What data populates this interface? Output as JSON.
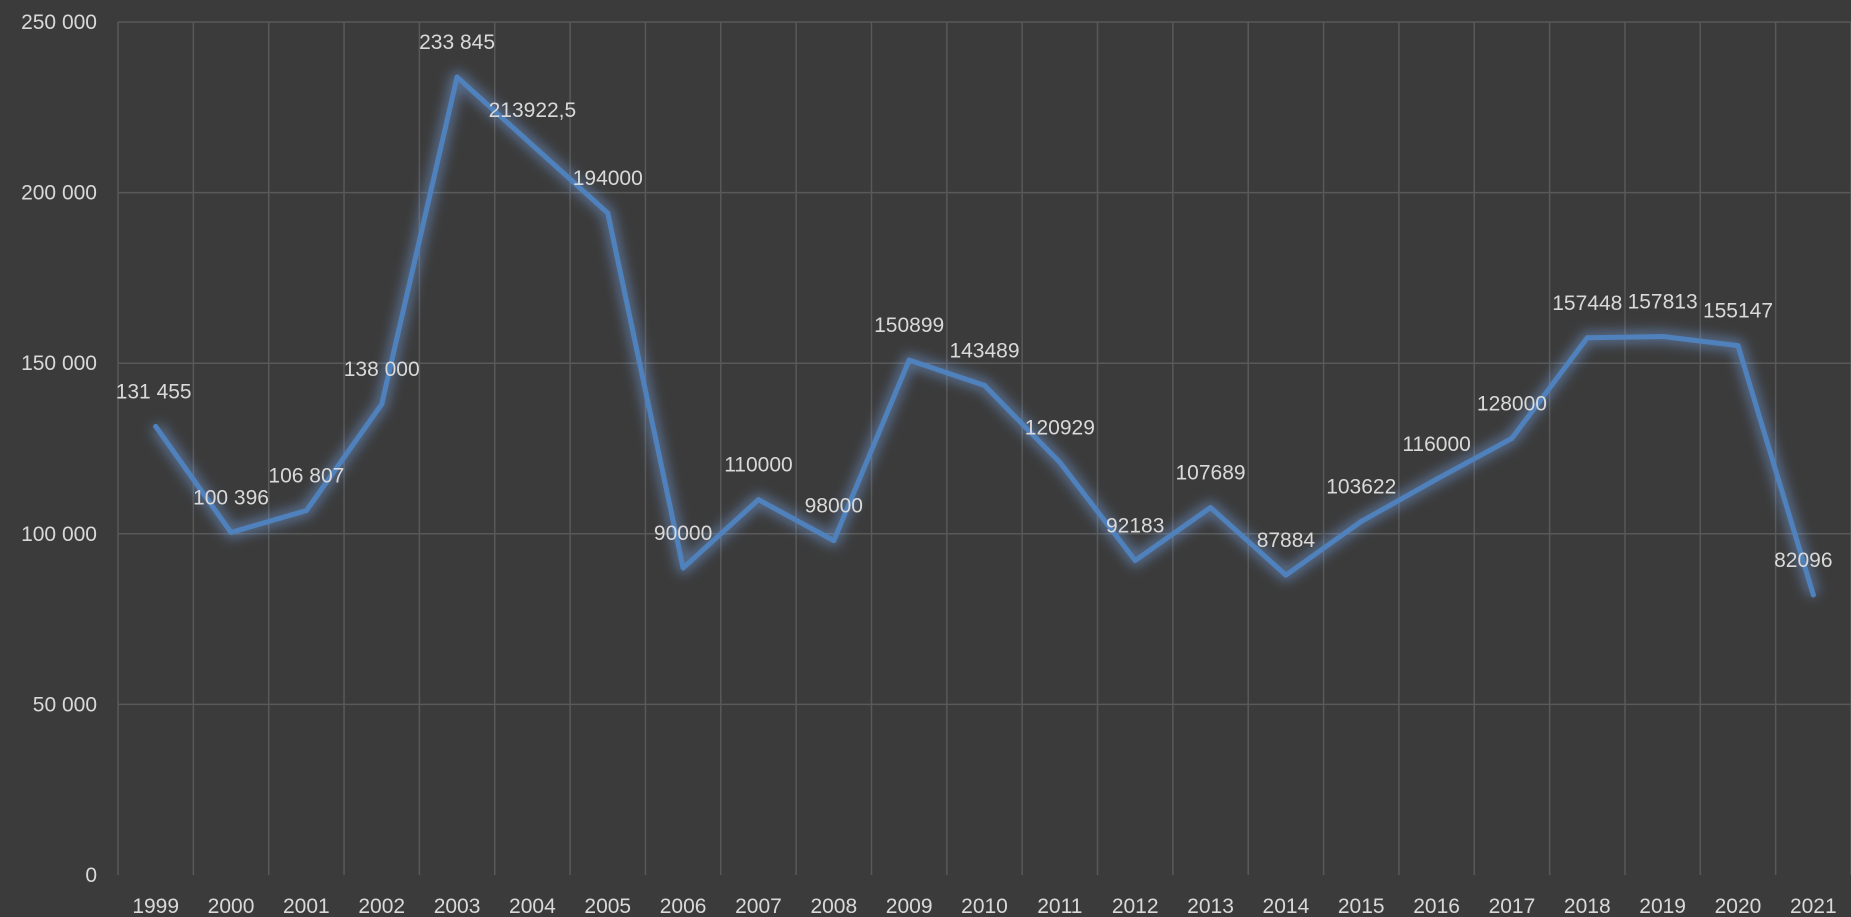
{
  "chart_data": {
    "type": "line",
    "title": "",
    "xlabel": "",
    "ylabel": "",
    "categories": [
      "1999",
      "2000",
      "2001",
      "2002",
      "2003",
      "2004",
      "2005",
      "2006",
      "2007",
      "2008",
      "2009",
      "2010",
      "2011",
      "2012",
      "2013",
      "2014",
      "2015",
      "2016",
      "2017",
      "2018",
      "2019",
      "2020",
      "2021"
    ],
    "series": [
      {
        "values": [
          131455,
          100396,
          106807,
          138000,
          233845,
          213922.5,
          194000,
          90000,
          110000,
          98000,
          150899,
          143489,
          120929,
          92183,
          107689,
          87884,
          103622,
          116000,
          128000,
          157448,
          157813,
          155147,
          82096
        ],
        "labels": [
          "131 455",
          "100 396",
          "106 807",
          "138 000",
          "233 845",
          "213922,5",
          "194000",
          "90000",
          "110000",
          "98000",
          "150899",
          "143489",
          "120929",
          "92183",
          "107689",
          "87884",
          "103622",
          "116000",
          "128000",
          "157448",
          "157813",
          "155147",
          "82096"
        ]
      }
    ],
    "ylim": [
      0,
      250000
    ],
    "yticks": [
      0,
      50000,
      100000,
      150000,
      200000,
      250000
    ],
    "ytick_labels": [
      "0",
      "50 000",
      "100 000",
      "150 000",
      "200 000",
      "250 000"
    ],
    "grid": true,
    "legend": "none",
    "colors": {
      "background": "#3b3b3b",
      "grid": "#595959",
      "line": "#4f81bd",
      "glow": "#7fb1ff",
      "text": "#d9d9d9"
    }
  }
}
